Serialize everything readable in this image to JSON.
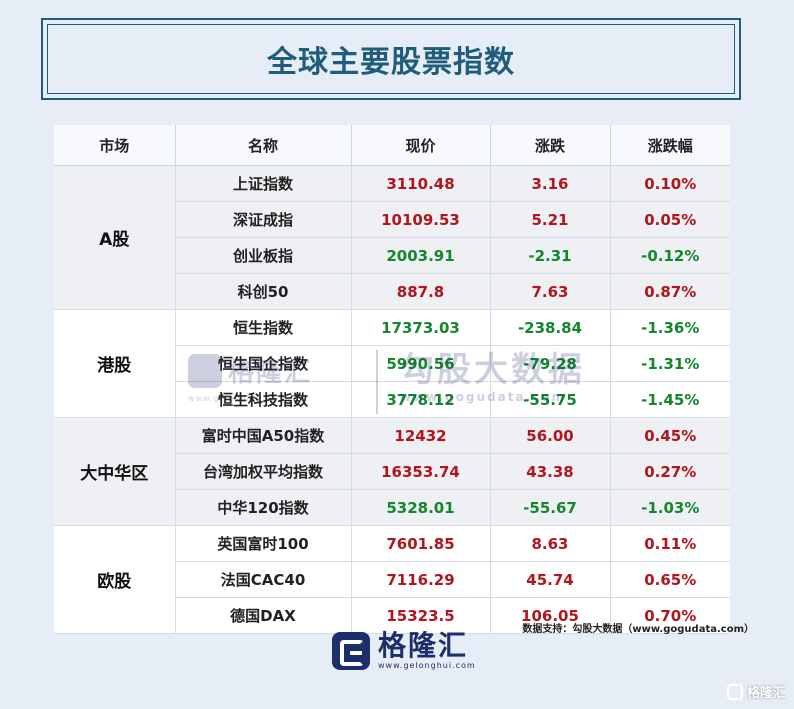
{
  "title": "全球主要股票指数",
  "table": {
    "headers": [
      "市场",
      "名称",
      "现价",
      "涨跌",
      "涨跌幅"
    ],
    "groups": [
      {
        "market": "A股",
        "rows": [
          {
            "name": "上证指数",
            "price": "3110.48",
            "change": "3.16",
            "pct": "0.10%",
            "dir": "up"
          },
          {
            "name": "深证成指",
            "price": "10109.53",
            "change": "5.21",
            "pct": "0.05%",
            "dir": "up"
          },
          {
            "name": "创业板指",
            "price": "2003.91",
            "change": "-2.31",
            "pct": "-0.12%",
            "dir": "down"
          },
          {
            "name": "科创50",
            "price": "887.8",
            "change": "7.63",
            "pct": "0.87%",
            "dir": "up"
          }
        ]
      },
      {
        "market": "港股",
        "rows": [
          {
            "name": "恒生指数",
            "price": "17373.03",
            "change": "-238.84",
            "pct": "-1.36%",
            "dir": "down"
          },
          {
            "name": "恒生国企指数",
            "price": "5990.56",
            "change": "-79.28",
            "pct": "-1.31%",
            "dir": "down"
          },
          {
            "name": "恒生科技指数",
            "price": "3778.12",
            "change": "-55.75",
            "pct": "-1.45%",
            "dir": "down"
          }
        ]
      },
      {
        "market": "大中华区",
        "rows": [
          {
            "name": "富时中国A50指数",
            "price": "12432",
            "change": "56.00",
            "pct": "0.45%",
            "dir": "up"
          },
          {
            "name": "台湾加权平均指数",
            "price": "16353.74",
            "change": "43.38",
            "pct": "0.27%",
            "dir": "up"
          },
          {
            "name": "中华120指数",
            "price": "5328.01",
            "change": "-55.67",
            "pct": "-1.03%",
            "dir": "down"
          }
        ]
      },
      {
        "market": "欧股",
        "rows": [
          {
            "name": "英国富时100",
            "price": "7601.85",
            "change": "8.63",
            "pct": "0.11%",
            "dir": "up"
          },
          {
            "name": "法国CAC40",
            "price": "7116.29",
            "change": "45.74",
            "pct": "0.65%",
            "dir": "up"
          },
          {
            "name": "德国DAX",
            "price": "15323.5",
            "change": "106.05",
            "pct": "0.70%",
            "dir": "up"
          }
        ]
      }
    ]
  },
  "source": "数据支持：勾股大数据（www.gogudata.com）",
  "logo": {
    "name": "格隆汇",
    "url": "www.gelonghui.com",
    "icon": "gelonghui-g-icon"
  },
  "watermark": {
    "left_name": "格隆汇",
    "left_url": "www.gelonghui.com",
    "right_name": "勾股大数据",
    "right_url": "www.gogudata.com"
  },
  "corner_mark": "格隆汇",
  "colors": {
    "up": "#b0161c",
    "down": "#14862d",
    "brand": "#1f5d7a",
    "logo": "#1d2f6b"
  }
}
